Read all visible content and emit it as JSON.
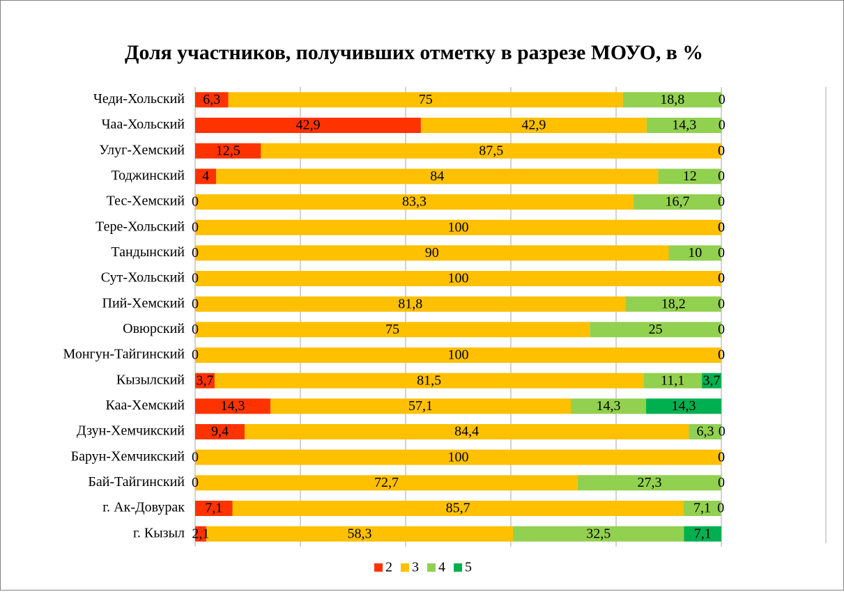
{
  "chart_data": {
    "type": "bar",
    "orientation": "horizontal",
    "stacked": true,
    "title": "Доля участников, получивших отметку в разрезе МОУО, в %",
    "categories": [
      "Чеди-Хольский",
      "Чаа-Хольский",
      "Улуг-Хемский",
      "Тоджинский",
      "Тес-Хемский",
      "Тере-Хольский",
      "Тандынский",
      "Сут-Хольский",
      "Пий-Хемский",
      "Овюрский",
      "Монгун-Тайгинский",
      "Кызылский",
      "Каа-Хемский",
      "Дзун-Хемчикский",
      "Барун-Хемчикский",
      "Бай-Тайгинский",
      "г. Ак-Довурак",
      "г. Кызыл"
    ],
    "series": [
      {
        "name": "2",
        "color": "#ff3300",
        "values": [
          6.3,
          42.9,
          12.5,
          4,
          0,
          0,
          0,
          0,
          0,
          0,
          0,
          3.7,
          14.3,
          9.4,
          0,
          0,
          7.1,
          2.1
        ],
        "value_labels": [
          "6,3",
          "42,9",
          "12,5",
          "4",
          "0",
          "0",
          "0",
          "0",
          "0",
          "0",
          "0",
          "3,7",
          "14,3",
          "9,4",
          "0",
          "0",
          "7,1",
          "2,1"
        ]
      },
      {
        "name": "3",
        "color": "#ffc000",
        "values": [
          75,
          42.9,
          87.5,
          84,
          83.3,
          100,
          90,
          100,
          81.8,
          75,
          100,
          81.5,
          57.1,
          84.4,
          100,
          72.7,
          85.7,
          58.3
        ],
        "value_labels": [
          "75",
          "42,9",
          "87,5",
          "84",
          "83,3",
          "100",
          "90",
          "100",
          "81,8",
          "75",
          "100",
          "81,5",
          "57,1",
          "84,4",
          "100",
          "72,7",
          "85,7",
          "58,3"
        ]
      },
      {
        "name": "4",
        "color": "#92d050",
        "values": [
          18.8,
          14.3,
          0,
          12,
          16.7,
          0,
          10,
          0,
          18.2,
          25,
          0,
          11.1,
          14.3,
          6.3,
          0,
          27.3,
          7.1,
          32.5
        ],
        "value_labels": [
          "18,8",
          "14,3",
          "0",
          "12",
          "16,7",
          "0",
          "10",
          "0",
          "18,2",
          "25",
          "0",
          "11,1",
          "14,3",
          "6,3",
          "0",
          "27,3",
          "7,1",
          "32,5"
        ]
      },
      {
        "name": "5",
        "color": "#00b050",
        "values": [
          0,
          0,
          0,
          0,
          0,
          0,
          0,
          0,
          0,
          0,
          0,
          3.7,
          14.3,
          0,
          0,
          0,
          0,
          7.1
        ],
        "value_labels": [
          "0",
          "0",
          "0",
          "0",
          "0",
          "0",
          "0",
          "0",
          "0",
          "0",
          "0",
          "3,7",
          "14,3",
          "0",
          "0",
          "0",
          "0",
          "7,1"
        ]
      }
    ],
    "xlim": [
      0,
      100
    ],
    "xticks": [
      0,
      20,
      40,
      60,
      80,
      100
    ],
    "grid": true,
    "legend": "bottom"
  }
}
